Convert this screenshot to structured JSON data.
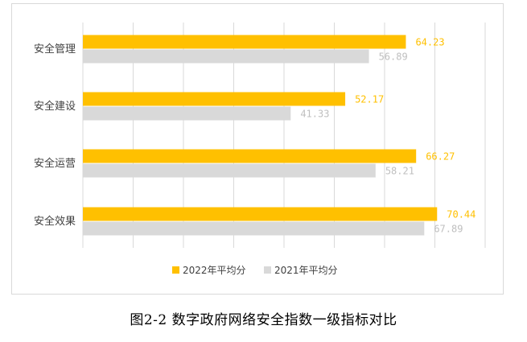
{
  "chart_data": {
    "type": "bar",
    "orientation": "horizontal",
    "categories": [
      "安全管理",
      "安全建设",
      "安全运营",
      "安全效果"
    ],
    "series": [
      {
        "name": "2022年平均分",
        "values": [
          64.23,
          52.17,
          66.27,
          70.44
        ],
        "color": "#ffc000",
        "label_color": "#ffc000"
      },
      {
        "name": "2021年平均分",
        "values": [
          56.89,
          41.33,
          58.21,
          67.89
        ],
        "color": "#d9d9d9",
        "label_color": "#bfbfbf"
      }
    ],
    "value_labels": [
      [
        "64.23",
        "52.17",
        "66.27",
        "70.44"
      ],
      [
        "56.89",
        "41.33",
        "58.21",
        "67.89"
      ]
    ],
    "xlim": [
      0,
      80
    ],
    "x_gridlines": [
      0,
      10,
      20,
      30,
      40,
      50,
      60,
      70,
      80
    ],
    "grid": "vertical",
    "legend_position": "bottom"
  },
  "caption": "图2-2  数字政府网络安全指数一级指标对比"
}
